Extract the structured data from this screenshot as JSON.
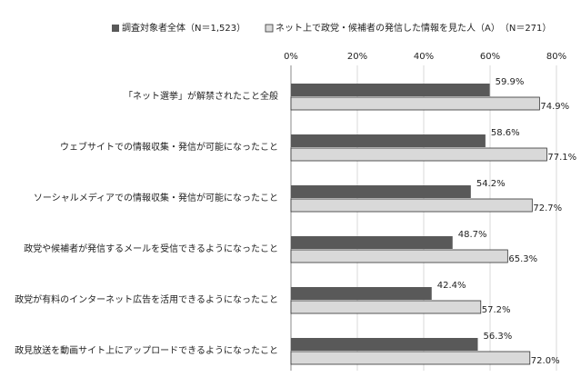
{
  "chart_data": {
    "type": "hbar",
    "categories": [
      "「ネット選挙」が解禁されたこと全般",
      "ウェブサイトでの情報収集・発信が可能になったこと",
      "ソーシャルメディアでの情報収集・発信が可能になったこと",
      "政党や候補者が発信するメールを受信できるようになったこと",
      "政党が有料のインターネット広告を活用できるようになったこと",
      "政見放送を動画サイト上にアップロードできるようになったこと"
    ],
    "series": [
      {
        "name": "調査対象者全体（N＝1,523）",
        "color": "#595959",
        "values": [
          59.9,
          58.6,
          54.2,
          48.7,
          42.4,
          56.3
        ],
        "value_labels": [
          "59.9%",
          "58.6%",
          "54.2%",
          "48.7%",
          "42.4%",
          "56.3%"
        ]
      },
      {
        "name": "ネット上で政党・候補者の発信した情報を見た人（A）　（N＝271）",
        "color": "#d9d9d9",
        "values": [
          74.9,
          77.1,
          72.7,
          65.3,
          57.2,
          72.0
        ],
        "value_labels": [
          "74.9%",
          "77.1%",
          "72.7%",
          "65.3%",
          "57.2%",
          "72.0%"
        ]
      }
    ],
    "xlim": [
      0,
      80
    ],
    "xticks": [
      {
        "value": 0,
        "label": "0%"
      },
      {
        "value": 20,
        "label": "20%"
      },
      {
        "value": 40,
        "label": "40%"
      },
      {
        "value": 60,
        "label": "60%"
      },
      {
        "value": 80,
        "label": "80%"
      }
    ],
    "grid": true
  }
}
